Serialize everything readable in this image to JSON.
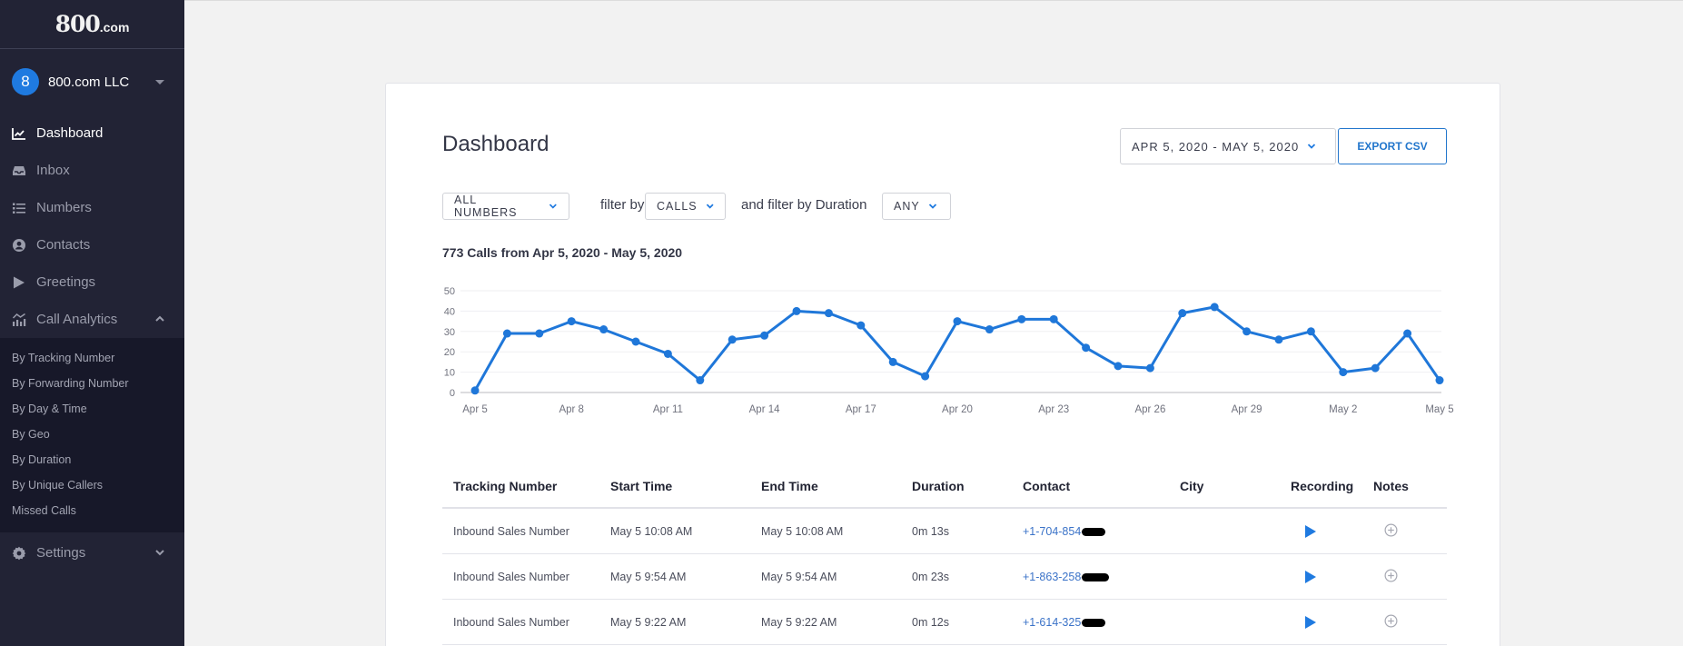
{
  "sidebar": {
    "logo": "800",
    "logo_suffix": ".com",
    "account": {
      "initial": "8",
      "name": "800.com LLC"
    },
    "items": [
      {
        "label": "Dashboard",
        "icon": "chart-line-icon",
        "active": true
      },
      {
        "label": "Inbox",
        "icon": "inbox-icon"
      },
      {
        "label": "Numbers",
        "icon": "list-icon"
      },
      {
        "label": "Contacts",
        "icon": "user-circle-icon"
      },
      {
        "label": "Greetings",
        "icon": "play-icon"
      },
      {
        "label": "Call Analytics",
        "icon": "analytics-icon",
        "expanded": true
      }
    ],
    "call_analytics_sub": [
      "By Tracking Number",
      "By Forwarding Number",
      "By Day & Time",
      "By Geo",
      "By Duration",
      "By Unique Callers",
      "Missed Calls"
    ],
    "settings": {
      "label": "Settings",
      "icon": "gear-icon"
    }
  },
  "main": {
    "title": "Dashboard",
    "date_range": "APR 5, 2020 - MAY 5, 2020",
    "export_label": "EXPORT CSV",
    "filters": {
      "numbers": "ALL NUMBERS",
      "filter_by_label": "filter by",
      "type": "CALLS",
      "duration_label": "and filter by Duration",
      "duration": "ANY"
    },
    "chart_title": "773 Calls from Apr 5, 2020 - May 5, 2020"
  },
  "chart_data": {
    "type": "line",
    "title": "773 Calls from Apr 5, 2020 - May 5, 2020",
    "xlabel": "",
    "ylabel": "",
    "ylim": [
      0,
      50
    ],
    "yticks": [
      0,
      10,
      20,
      30,
      40,
      50
    ],
    "grid": true,
    "legend": "none",
    "color": "#1f77d9",
    "xtick_labels": [
      "Apr 5",
      "Apr 8",
      "Apr 11",
      "Apr 14",
      "Apr 17",
      "Apr 20",
      "Apr 23",
      "Apr 26",
      "Apr 29",
      "May 2",
      "May 5"
    ],
    "x": [
      "Apr 5",
      "Apr 6",
      "Apr 7",
      "Apr 8",
      "Apr 9",
      "Apr 10",
      "Apr 11",
      "Apr 12",
      "Apr 13",
      "Apr 14",
      "Apr 15",
      "Apr 16",
      "Apr 17",
      "Apr 18",
      "Apr 19",
      "Apr 20",
      "Apr 21",
      "Apr 22",
      "Apr 23",
      "Apr 24",
      "Apr 25",
      "Apr 26",
      "Apr 27",
      "Apr 28",
      "Apr 29",
      "Apr 30",
      "May 1",
      "May 2",
      "May 3",
      "May 4",
      "May 5"
    ],
    "series": [
      {
        "name": "Calls",
        "values": [
          1,
          29,
          29,
          35,
          31,
          25,
          19,
          6,
          26,
          28,
          40,
          39,
          33,
          15,
          8,
          35,
          31,
          36,
          36,
          22,
          13,
          12,
          39,
          42,
          30,
          26,
          30,
          10,
          12,
          29,
          6
        ]
      }
    ]
  },
  "table": {
    "headers": [
      "Tracking Number",
      "Start Time",
      "End Time",
      "Duration",
      "Contact",
      "City",
      "Recording",
      "Notes"
    ],
    "rows": [
      {
        "tracking": "Inbound Sales Number",
        "start": "May 5 10:08 AM",
        "end": "May 5 10:08 AM",
        "duration": "0m 13s",
        "contact": "+1-704-854-",
        "city": ""
      },
      {
        "tracking": "Inbound Sales Number",
        "start": "May 5 9:54 AM",
        "end": "May 5 9:54 AM",
        "duration": "0m 23s",
        "contact": "+1-863-258-",
        "city": ""
      },
      {
        "tracking": "Inbound Sales Number",
        "start": "May 5 9:22 AM",
        "end": "May 5 9:22 AM",
        "duration": "0m 12s",
        "contact": "+1-614-325-",
        "city": ""
      }
    ]
  }
}
